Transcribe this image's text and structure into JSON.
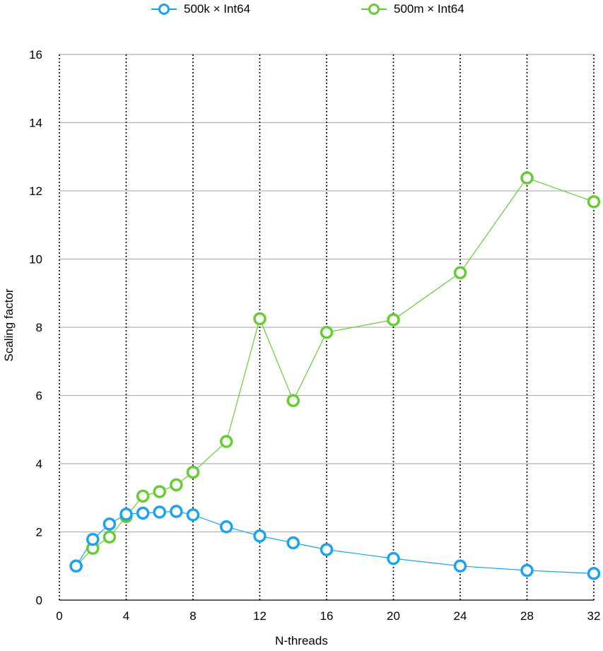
{
  "chart_data": {
    "type": "line",
    "title": "",
    "xlabel": "N-threads",
    "ylabel": "Scaling factor",
    "xlim": [
      0,
      32
    ],
    "ylim": [
      0,
      16
    ],
    "xticks": [
      0,
      4,
      8,
      12,
      16,
      20,
      24,
      28,
      32
    ],
    "yticks": [
      0,
      2,
      4,
      6,
      8,
      10,
      12,
      14,
      16
    ],
    "grid": {
      "horizontal": "solid",
      "vertical": "dotted"
    },
    "legend_position": "top-center",
    "series": [
      {
        "name": "500k × Int64",
        "color": "#1aa3f0",
        "x": [
          1,
          2,
          3,
          4,
          5,
          6,
          7,
          8,
          10,
          12,
          14,
          16,
          20,
          24,
          28,
          32
        ],
        "y": [
          1.0,
          1.78,
          2.23,
          2.52,
          2.55,
          2.58,
          2.6,
          2.5,
          2.15,
          1.88,
          1.68,
          1.48,
          1.22,
          1.0,
          0.87,
          0.78
        ]
      },
      {
        "name": "500m × Int64",
        "color": "#66cc33",
        "x": [
          1,
          2,
          3,
          4,
          5,
          6,
          7,
          8,
          10,
          12,
          14,
          16,
          20,
          24,
          28,
          32
        ],
        "y": [
          1.0,
          1.52,
          1.85,
          2.45,
          3.05,
          3.18,
          3.38,
          3.75,
          4.65,
          8.25,
          5.85,
          7.85,
          8.22,
          9.6,
          12.38,
          11.68
        ]
      }
    ]
  }
}
